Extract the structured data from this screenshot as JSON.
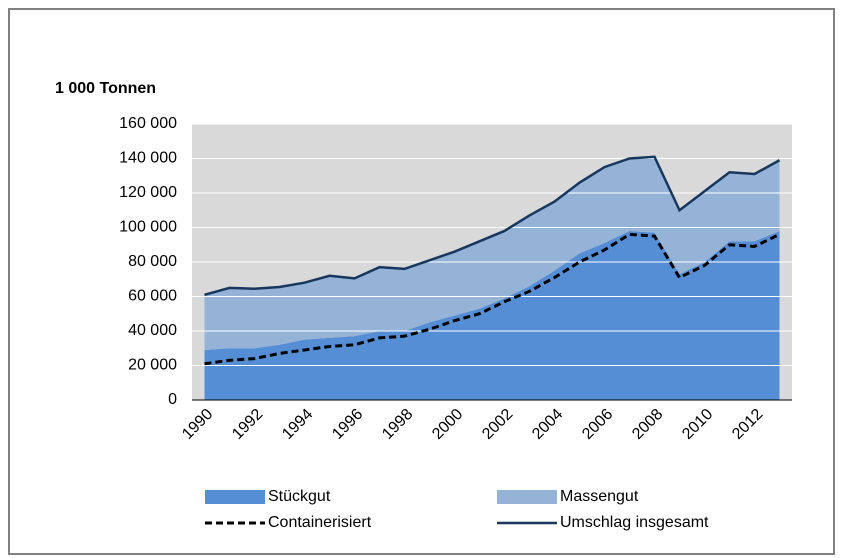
{
  "chart_data": {
    "type": "stacked_area",
    "y_label": "1 000 Tonnen",
    "categories": [
      "1990",
      null,
      "1992",
      null,
      "1994",
      null,
      "1996",
      null,
      "1998",
      null,
      "2000",
      null,
      "2002",
      null,
      "2004",
      null,
      "2006",
      null,
      "2008",
      null,
      "2010",
      null,
      "2012",
      null
    ],
    "series": [
      {
        "name": "Stückgut",
        "color": "#558ed5",
        "kind": "area",
        "values": [
          29,
          30,
          30,
          32,
          35,
          36,
          37,
          40,
          40,
          45,
          49,
          53,
          59,
          66,
          75,
          85,
          91,
          98,
          97,
          73,
          80,
          92,
          92,
          98
        ]
      },
      {
        "name": "Massengut",
        "color": "#95b3d7",
        "kind": "area",
        "values": [
          32,
          35,
          34.5,
          33.5,
          33,
          36,
          33.5,
          37,
          36,
          36,
          37,
          39,
          39,
          41,
          40,
          41,
          44,
          42,
          44,
          37,
          41,
          40,
          39,
          41
        ]
      },
      {
        "name": "Containerisiert",
        "color": "#000000",
        "kind": "dashed-line",
        "values": [
          21,
          23,
          24,
          27,
          29,
          31,
          32,
          36,
          37,
          41,
          46,
          50,
          57,
          63,
          71,
          80,
          87,
          96,
          95,
          71,
          78,
          90,
          89,
          96
        ]
      },
      {
        "name": "Umschlag insgesamt",
        "color": "#17375e",
        "kind": "line",
        "values": [
          61,
          65,
          64.5,
          65.5,
          68,
          72,
          70.5,
          77,
          76,
          81,
          86,
          92,
          98,
          107,
          115,
          126,
          135,
          140,
          141,
          110,
          121,
          132,
          131,
          139
        ]
      }
    ],
    "ylim": [
      0,
      160
    ],
    "yticks": [
      {
        "value": 0,
        "label": "0"
      },
      {
        "value": 20,
        "label": "20 000"
      },
      {
        "value": 40,
        "label": "40 000"
      },
      {
        "value": 60,
        "label": "60 000"
      },
      {
        "value": 80,
        "label": "80 000"
      },
      {
        "value": 100,
        "label": "100 000"
      },
      {
        "value": 120,
        "label": "120 000"
      },
      {
        "value": 140,
        "label": "140 000"
      },
      {
        "value": 160,
        "label": "160 000"
      }
    ],
    "grid": true
  }
}
